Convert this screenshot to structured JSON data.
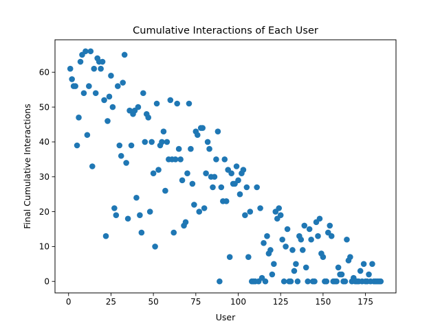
{
  "chart_data": {
    "type": "scatter",
    "title": "Cumulative Interactions of Each User",
    "xlabel": "User",
    "ylabel": "Final Cumulative Interactions",
    "xlim": [
      -8,
      193
    ],
    "ylim": [
      -3.3,
      69.3
    ],
    "xticks": [
      0,
      25,
      50,
      75,
      100,
      125,
      150,
      175
    ],
    "yticks": [
      0,
      10,
      20,
      30,
      40,
      50,
      60
    ],
    "grid": false,
    "marker_color": "#1f77b4",
    "points": [
      [
        1,
        61
      ],
      [
        2,
        58
      ],
      [
        3,
        56
      ],
      [
        4,
        56
      ],
      [
        5,
        39
      ],
      [
        6,
        47
      ],
      [
        7,
        63
      ],
      [
        8,
        65
      ],
      [
        9,
        54
      ],
      [
        10,
        66
      ],
      [
        11,
        42
      ],
      [
        12,
        56
      ],
      [
        13,
        66
      ],
      [
        14,
        33
      ],
      [
        15,
        61
      ],
      [
        16,
        54
      ],
      [
        17,
        64
      ],
      [
        18,
        63
      ],
      [
        19,
        61
      ],
      [
        20,
        63
      ],
      [
        21,
        52
      ],
      [
        22,
        13
      ],
      [
        23,
        46
      ],
      [
        24,
        53
      ],
      [
        25,
        59
      ],
      [
        26,
        50
      ],
      [
        27,
        21
      ],
      [
        28,
        19
      ],
      [
        29,
        56
      ],
      [
        30,
        39
      ],
      [
        31,
        36
      ],
      [
        32,
        57
      ],
      [
        33,
        65
      ],
      [
        34,
        34
      ],
      [
        35,
        18
      ],
      [
        36,
        49
      ],
      [
        37,
        39
      ],
      [
        38,
        48
      ],
      [
        39,
        49
      ],
      [
        40,
        24
      ],
      [
        41,
        50
      ],
      [
        42,
        19
      ],
      [
        43,
        14
      ],
      [
        44,
        54
      ],
      [
        45,
        40
      ],
      [
        46,
        48
      ],
      [
        47,
        47
      ],
      [
        48,
        20
      ],
      [
        49,
        40
      ],
      [
        50,
        31
      ],
      [
        51,
        10
      ],
      [
        52,
        51
      ],
      [
        53,
        32
      ],
      [
        54,
        39
      ],
      [
        55,
        40
      ],
      [
        56,
        43
      ],
      [
        57,
        26
      ],
      [
        58,
        40
      ],
      [
        59,
        35
      ],
      [
        60,
        52
      ],
      [
        61,
        35
      ],
      [
        62,
        14
      ],
      [
        63,
        35
      ],
      [
        64,
        51
      ],
      [
        65,
        38
      ],
      [
        66,
        35
      ],
      [
        67,
        29
      ],
      [
        68,
        16
      ],
      [
        69,
        17
      ],
      [
        70,
        31
      ],
      [
        71,
        51
      ],
      [
        72,
        38
      ],
      [
        73,
        28
      ],
      [
        74,
        22
      ],
      [
        75,
        43
      ],
      [
        76,
        42
      ],
      [
        77,
        20
      ],
      [
        78,
        44
      ],
      [
        79,
        44
      ],
      [
        80,
        21
      ],
      [
        81,
        31
      ],
      [
        82,
        40
      ],
      [
        83,
        38
      ],
      [
        84,
        30
      ],
      [
        85,
        27
      ],
      [
        86,
        30
      ],
      [
        87,
        35
      ],
      [
        88,
        43
      ],
      [
        89,
        0
      ],
      [
        90,
        27
      ],
      [
        91,
        23
      ],
      [
        92,
        35
      ],
      [
        93,
        23
      ],
      [
        94,
        32
      ],
      [
        95,
        7
      ],
      [
        96,
        31
      ],
      [
        97,
        28
      ],
      [
        98,
        28
      ],
      [
        99,
        33
      ],
      [
        100,
        29
      ],
      [
        101,
        25
      ],
      [
        102,
        31
      ],
      [
        103,
        32
      ],
      [
        104,
        19
      ],
      [
        105,
        27
      ],
      [
        106,
        7
      ],
      [
        107,
        20
      ],
      [
        108,
        0
      ],
      [
        109,
        0
      ],
      [
        110,
        0
      ],
      [
        111,
        27
      ],
      [
        112,
        0
      ],
      [
        113,
        21
      ],
      [
        114,
        1
      ],
      [
        115,
        11
      ],
      [
        116,
        0
      ],
      [
        117,
        13
      ],
      [
        118,
        8
      ],
      [
        119,
        9
      ],
      [
        120,
        2
      ],
      [
        121,
        5
      ],
      [
        122,
        20
      ],
      [
        123,
        18
      ],
      [
        124,
        21
      ],
      [
        125,
        19
      ],
      [
        126,
        12
      ],
      [
        127,
        0
      ],
      [
        128,
        10
      ],
      [
        129,
        15
      ],
      [
        130,
        0
      ],
      [
        131,
        0
      ],
      [
        132,
        9
      ],
      [
        133,
        3
      ],
      [
        134,
        5
      ],
      [
        135,
        0
      ],
      [
        136,
        13
      ],
      [
        137,
        12
      ],
      [
        138,
        9
      ],
      [
        139,
        16
      ],
      [
        140,
        4
      ],
      [
        141,
        0
      ],
      [
        142,
        15
      ],
      [
        143,
        12
      ],
      [
        144,
        0
      ],
      [
        145,
        0
      ],
      [
        146,
        17
      ],
      [
        147,
        13
      ],
      [
        148,
        18
      ],
      [
        149,
        8
      ],
      [
        150,
        7
      ],
      [
        151,
        0
      ],
      [
        152,
        0
      ],
      [
        153,
        14
      ],
      [
        154,
        16
      ],
      [
        155,
        13
      ],
      [
        156,
        0
      ],
      [
        157,
        0
      ],
      [
        158,
        0
      ],
      [
        159,
        4
      ],
      [
        160,
        2
      ],
      [
        161,
        2
      ],
      [
        162,
        0
      ],
      [
        163,
        0
      ],
      [
        164,
        12
      ],
      [
        165,
        6
      ],
      [
        166,
        7
      ],
      [
        167,
        0
      ],
      [
        168,
        1
      ],
      [
        169,
        0
      ],
      [
        170,
        0
      ],
      [
        171,
        0
      ],
      [
        172,
        3
      ],
      [
        173,
        0
      ],
      [
        174,
        5
      ],
      [
        175,
        0
      ],
      [
        176,
        0
      ],
      [
        177,
        2
      ],
      [
        178,
        0
      ],
      [
        179,
        5
      ],
      [
        180,
        0
      ],
      [
        181,
        0
      ],
      [
        182,
        0
      ],
      [
        183,
        0
      ],
      [
        184,
        0
      ]
    ]
  }
}
